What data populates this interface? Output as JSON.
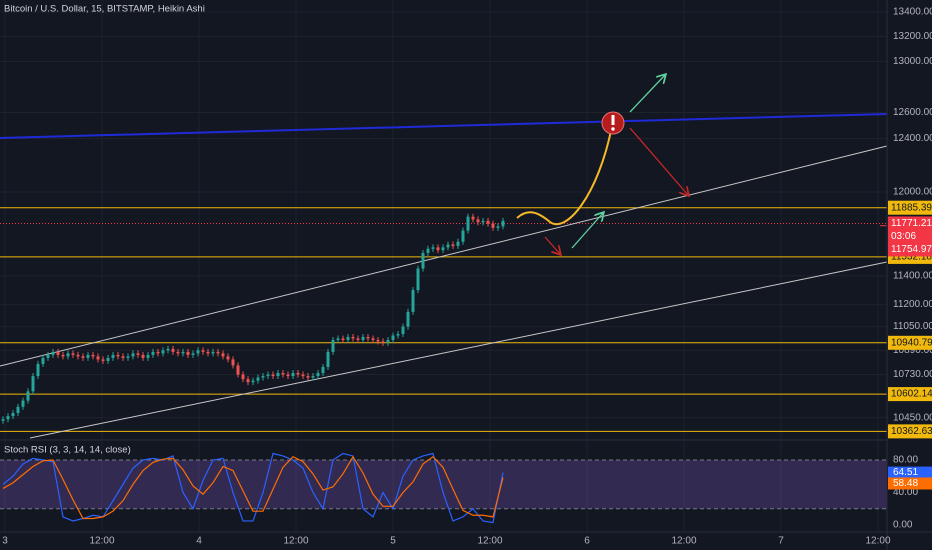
{
  "title": "Bitcoin / U.S. Dollar, 15, BITSTAMP, Heikin Ashi",
  "chart_data": {
    "type": "candlestick",
    "log_scale": true,
    "grid": true,
    "up_color": "#26a69a",
    "down_color": "#ef5350",
    "ylim": [
      10308,
      13499
    ],
    "yticks": [
      {
        "value": 13400,
        "label": "13400.00"
      },
      {
        "value": 13200,
        "label": "13200.00"
      },
      {
        "value": 13000,
        "label": "13000.00"
      },
      {
        "value": 12600,
        "label": "12600.00"
      },
      {
        "value": 12400,
        "label": "12400.00"
      },
      {
        "value": 12000,
        "label": "12000.00"
      },
      {
        "value": 11400,
        "label": "11400.00"
      },
      {
        "value": 11200,
        "label": "11200.00"
      },
      {
        "value": 11050,
        "label": "11050.00"
      },
      {
        "value": 10890,
        "label": "10890.00"
      },
      {
        "value": 10730,
        "label": "10730.00"
      },
      {
        "value": 10450,
        "label": "10450.00"
      }
    ],
    "values": [
      10440,
      10460,
      10480,
      10520,
      10560,
      10620,
      10720,
      10800,
      10840,
      10860,
      10880,
      10860,
      10850,
      10870,
      10860,
      10850,
      10840,
      10860,
      10850,
      10830,
      10820,
      10840,
      10860,
      10850,
      10840,
      10850,
      10870,
      10860,
      10840,
      10860,
      10880,
      10870,
      10890,
      10900,
      10880,
      10870,
      10880,
      10860,
      10870,
      10890,
      10880,
      10870,
      10880,
      10870,
      10850,
      10830,
      10790,
      10730,
      10700,
      10680,
      10690,
      10710,
      10720,
      10730,
      10720,
      10740,
      10730,
      10720,
      10740,
      10730,
      10720,
      10710,
      10720,
      10740,
      10780,
      10880,
      10960,
      10970,
      10960,
      10980,
      10970,
      10960,
      10980,
      10970,
      10960,
      10950,
      10940,
      10960,
      10990,
      11000,
      11050,
      11150,
      11300,
      11450,
      11560,
      11590,
      11600,
      11580,
      11600,
      11620,
      11610,
      11640,
      11720,
      11820,
      11800,
      11780,
      11790,
      11770,
      11740,
      11750,
      11790
    ],
    "levels": [
      {
        "value": 11885.39,
        "color": "#f0b90b"
      },
      {
        "value": 11532.18,
        "color": "#f0b90b"
      },
      {
        "value": 10940.79,
        "color": "#f0b90b"
      },
      {
        "value": 10602.14,
        "color": "#f0b90b"
      },
      {
        "value": 10362.63,
        "color": "#f0b90b"
      }
    ],
    "last_price": 11771.21,
    "countdown": "03:06",
    "second_price": 11754.97,
    "price_color": "#f23645",
    "time_axis": [
      "3",
      "12:00",
      "4",
      "12:00",
      "5",
      "12:00",
      "6",
      "12:00",
      "7",
      "12:00"
    ]
  },
  "indicator": {
    "type": "line",
    "title": "Stoch RSI (3, 3, 14, 14, close)",
    "ylim": [
      -8.6,
      104.6
    ],
    "yticks": [
      {
        "value": 80,
        "label": "80.00"
      },
      {
        "value": 40,
        "label": "40.00"
      },
      {
        "value": 0,
        "label": "0.00"
      }
    ],
    "band": [
      20,
      80
    ],
    "band_color": "#7e57c2",
    "series": [
      {
        "color": "#2962ff",
        "values": [
          50,
          60,
          75,
          82,
          80,
          78,
          10,
          5,
          8,
          12,
          10,
          30,
          50,
          70,
          80,
          82,
          80,
          85,
          40,
          20,
          55,
          80,
          82,
          40,
          5,
          5,
          40,
          88,
          85,
          80,
          70,
          40,
          20,
          80,
          88,
          85,
          20,
          10,
          40,
          20,
          60,
          80,
          85,
          88,
          40,
          5,
          10,
          20,
          5,
          3,
          64.51
        ]
      },
      {
        "color": "#ff6d00",
        "values": [
          45,
          52,
          62,
          72,
          79,
          80,
          56,
          31,
          8,
          8,
          10,
          17,
          30,
          50,
          67,
          77,
          81,
          82,
          68,
          48,
          38,
          52,
          72,
          67,
          42,
          17,
          17,
          44,
          71,
          84,
          78,
          63,
          43,
          47,
          63,
          84,
          64,
          38,
          23,
          23,
          40,
          53,
          75,
          84,
          71,
          44,
          18,
          12,
          12,
          10,
          58.48
        ]
      }
    ]
  }
}
